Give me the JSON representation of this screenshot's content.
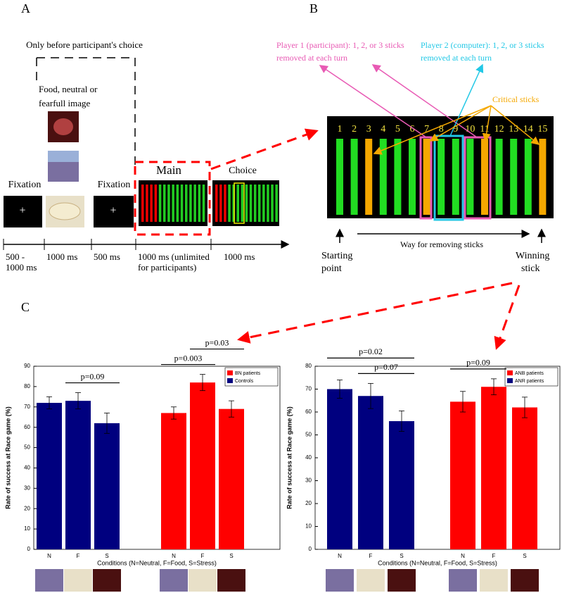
{
  "panel_a": {
    "label": "A",
    "note": "Only before participant's choice",
    "image_caption": [
      "Food, neutral or",
      "fearfull image"
    ],
    "fixation": "Fixation",
    "fixation_symbol": "+",
    "main": "Main",
    "choice": "Choice",
    "times": [
      [
        "500 -",
        "1000 ms"
      ],
      [
        "1000 ms"
      ],
      [
        "500 ms"
      ],
      [
        "1000 ms (unlimited",
        "for participants)"
      ],
      [
        "1000 ms"
      ]
    ]
  },
  "panel_b": {
    "label": "B",
    "player1": [
      "Player 1 (participant): 1, 2, or 3 sticks",
      "removed at each turn"
    ],
    "player2": [
      "Player 2 (computer): 1, 2, or 3 sticks",
      "removed at each turn"
    ],
    "critical": "Critical sticks",
    "sticks": [
      "1",
      "2",
      "3",
      "4",
      "5",
      "6",
      "7",
      "8",
      "9",
      "10",
      "11",
      "12",
      "13",
      "14",
      "15"
    ],
    "way": "Way for removing sticks",
    "start": [
      "Starting",
      "point"
    ],
    "win": [
      "Winning",
      "stick"
    ]
  },
  "panel_c": {
    "label": "C"
  },
  "chart_data": [
    {
      "type": "bar",
      "ylabel": "Rate of success at Race game (%)",
      "xlabel": "Conditions (N=Neutral, F=Food, S=Stress)",
      "categories": [
        "N",
        "F",
        "S",
        "N",
        "F",
        "S"
      ],
      "series": [
        {
          "name": "BN patients",
          "color": "#ff0000",
          "values": [
            null,
            null,
            null,
            67,
            82,
            69
          ],
          "errors": [
            null,
            null,
            null,
            3,
            4,
            4
          ]
        },
        {
          "name": "Controls",
          "color": "#00007f",
          "values": [
            72,
            73,
            62,
            null,
            null,
            null
          ],
          "errors": [
            3,
            4,
            5,
            null,
            null,
            null
          ]
        }
      ],
      "ylim": [
        0,
        90
      ],
      "yticks": [
        0,
        10,
        20,
        30,
        40,
        50,
        60,
        70,
        80,
        90
      ],
      "legend": "upper right",
      "annotations": [
        {
          "text": "p=0.09",
          "span": [
            1,
            2
          ]
        },
        {
          "text": "p=0.003",
          "span": [
            3,
            4
          ]
        },
        {
          "text": "p=0.03",
          "span": [
            4,
            5
          ]
        }
      ]
    },
    {
      "type": "bar",
      "ylabel": "Rate of success at Race game (%)",
      "xlabel": "Conditions (N=Neutral, F=Food, S=Stress)",
      "categories": [
        "N",
        "F",
        "S",
        "N",
        "F",
        "S"
      ],
      "series": [
        {
          "name": "ANB patients",
          "color": "#ff0000",
          "values": [
            null,
            null,
            null,
            64.5,
            71,
            62
          ],
          "errors": [
            null,
            null,
            null,
            4.5,
            3.5,
            4.5
          ]
        },
        {
          "name": "ANR patients",
          "color": "#00007f",
          "values": [
            70,
            67,
            56,
            null,
            null,
            null
          ],
          "errors": [
            4,
            5.5,
            4.5,
            null,
            null,
            null
          ]
        }
      ],
      "ylim": [
        0,
        80
      ],
      "yticks": [
        0,
        10,
        20,
        30,
        40,
        50,
        60,
        70,
        80
      ],
      "legend": "upper right",
      "annotations": [
        {
          "text": "p=0.02",
          "span": [
            0,
            2
          ]
        },
        {
          "text": "p=0.07",
          "span": [
            1,
            2
          ]
        },
        {
          "text": "p=0.09",
          "span": [
            3,
            4
          ]
        }
      ]
    }
  ]
}
